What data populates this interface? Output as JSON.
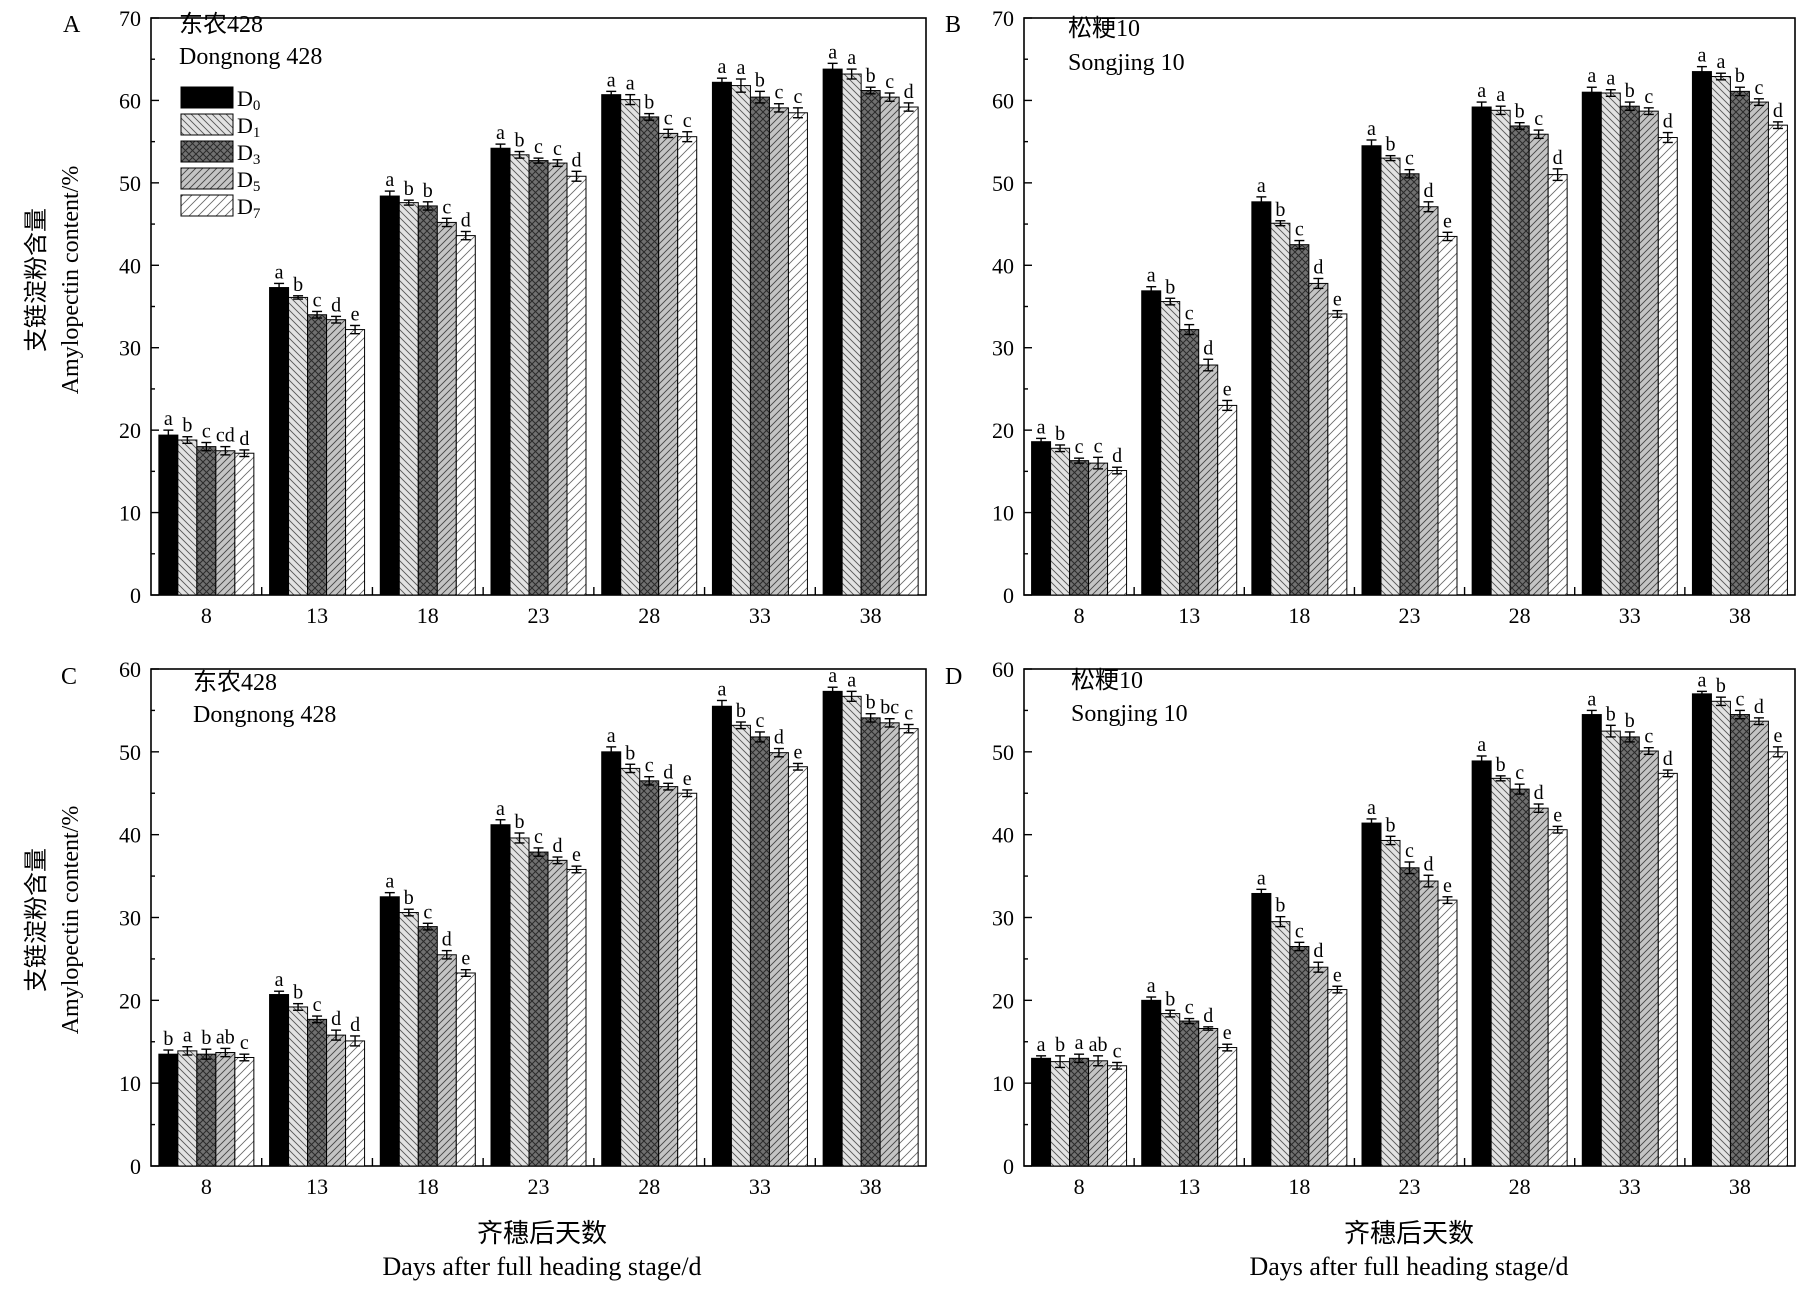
{
  "legend": {
    "items": [
      {
        "main": "D",
        "sub": "0",
        "pattern": "solid-black"
      },
      {
        "main": "D",
        "sub": "1",
        "pattern": "diag-down-light"
      },
      {
        "main": "D",
        "sub": "3",
        "pattern": "crosshatch-dark"
      },
      {
        "main": "D",
        "sub": "5",
        "pattern": "diag-up-gray"
      },
      {
        "main": "D",
        "sub": "7",
        "pattern": "diag-up-white"
      }
    ]
  },
  "shared": {
    "ylabel_cn": "支链淀粉含量",
    "ylabel_en": "Amylopectin content/%",
    "xlabel_cn": "齐穗后天数",
    "xlabel_en": "Days after full heading stage/d"
  },
  "chart_data": [
    {
      "type": "bar",
      "panel": "A",
      "title_cn": "东农428",
      "title_en": "Dongnong 428",
      "categories": [
        "8",
        "13",
        "18",
        "23",
        "28",
        "33",
        "38"
      ],
      "ylim": [
        0,
        70
      ],
      "yticks": [
        0,
        10,
        20,
        30,
        40,
        50,
        60,
        70
      ],
      "series": [
        {
          "name": "D0",
          "values": [
            19.4,
            37.3,
            48.4,
            54.2,
            60.7,
            62.2,
            63.8
          ],
          "errors": [
            0.6,
            0.5,
            0.6,
            0.5,
            0.4,
            0.5,
            0.7
          ]
        },
        {
          "name": "D1",
          "values": [
            18.8,
            36.1,
            47.6,
            53.4,
            60.1,
            61.8,
            63.2
          ],
          "errors": [
            0.4,
            0.2,
            0.3,
            0.4,
            0.6,
            0.8,
            0.6
          ]
        },
        {
          "name": "D3",
          "values": [
            18.0,
            34.0,
            47.2,
            52.7,
            58.0,
            60.4,
            61.2
          ],
          "errors": [
            0.5,
            0.4,
            0.5,
            0.3,
            0.4,
            0.7,
            0.4
          ]
        },
        {
          "name": "D5",
          "values": [
            17.5,
            33.4,
            45.2,
            52.4,
            56.0,
            59.1,
            60.4
          ],
          "errors": [
            0.5,
            0.4,
            0.5,
            0.4,
            0.5,
            0.5,
            0.5
          ]
        },
        {
          "name": "D7",
          "values": [
            17.2,
            32.2,
            43.6,
            50.8,
            55.6,
            58.5,
            59.2
          ],
          "errors": [
            0.4,
            0.5,
            0.5,
            0.6,
            0.6,
            0.6,
            0.5
          ]
        }
      ],
      "letters": [
        [
          "a",
          "b",
          "c",
          "cd",
          "d"
        ],
        [
          "a",
          "b",
          "c",
          "d",
          "e"
        ],
        [
          "a",
          "b",
          "b",
          "c",
          "d"
        ],
        [
          "a",
          "b",
          "c",
          "c",
          "d"
        ],
        [
          "a",
          "a",
          "b",
          "c",
          "c"
        ],
        [
          "a",
          "a",
          "b",
          "c",
          "c"
        ],
        [
          "a",
          "a",
          "b",
          "c",
          "d"
        ]
      ]
    },
    {
      "type": "bar",
      "panel": "B",
      "title_cn": "松粳10",
      "title_en": "Songjing 10",
      "categories": [
        "8",
        "13",
        "18",
        "23",
        "28",
        "33",
        "38"
      ],
      "ylim": [
        0,
        70
      ],
      "yticks": [
        0,
        10,
        20,
        30,
        40,
        50,
        60,
        70
      ],
      "series": [
        {
          "name": "D0",
          "values": [
            18.6,
            36.9,
            47.7,
            54.5,
            59.2,
            61.0,
            63.5
          ],
          "errors": [
            0.4,
            0.5,
            0.6,
            0.7,
            0.6,
            0.6,
            0.6
          ]
        },
        {
          "name": "D1",
          "values": [
            17.8,
            35.6,
            45.1,
            53.0,
            58.8,
            60.9,
            62.9
          ],
          "errors": [
            0.4,
            0.4,
            0.3,
            0.3,
            0.5,
            0.4,
            0.4
          ]
        },
        {
          "name": "D3",
          "values": [
            16.3,
            32.2,
            42.5,
            51.1,
            56.9,
            59.3,
            61.1
          ],
          "errors": [
            0.3,
            0.6,
            0.5,
            0.5,
            0.4,
            0.5,
            0.5
          ]
        },
        {
          "name": "D5",
          "values": [
            16.0,
            27.9,
            37.8,
            47.1,
            55.9,
            58.7,
            59.8
          ],
          "errors": [
            0.7,
            0.7,
            0.6,
            0.6,
            0.5,
            0.4,
            0.4
          ]
        },
        {
          "name": "D7",
          "values": [
            15.1,
            23.0,
            34.1,
            43.5,
            51.0,
            55.5,
            57.0
          ],
          "errors": [
            0.4,
            0.6,
            0.4,
            0.5,
            0.7,
            0.6,
            0.4
          ]
        }
      ],
      "letters": [
        [
          "a",
          "b",
          "c",
          "c",
          "d"
        ],
        [
          "a",
          "b",
          "c",
          "d",
          "e"
        ],
        [
          "a",
          "b",
          "c",
          "d",
          "e"
        ],
        [
          "a",
          "b",
          "c",
          "d",
          "e"
        ],
        [
          "a",
          "a",
          "b",
          "c",
          "d"
        ],
        [
          "a",
          "a",
          "b",
          "c",
          "d"
        ],
        [
          "a",
          "a",
          "b",
          "c",
          "d"
        ]
      ]
    },
    {
      "type": "bar",
      "panel": "C",
      "title_cn": "东农428",
      "title_en": "Dongnong 428",
      "categories": [
        "8",
        "13",
        "18",
        "23",
        "28",
        "33",
        "38"
      ],
      "ylim": [
        0,
        60
      ],
      "yticks": [
        0,
        10,
        20,
        30,
        40,
        50,
        60
      ],
      "series": [
        {
          "name": "D0",
          "values": [
            13.5,
            20.7,
            32.5,
            41.2,
            50.0,
            55.5,
            57.3
          ],
          "errors": [
            0.5,
            0.4,
            0.5,
            0.6,
            0.6,
            0.7,
            0.5
          ]
        },
        {
          "name": "D1",
          "values": [
            13.9,
            19.2,
            30.6,
            39.6,
            48.0,
            53.2,
            56.7
          ],
          "errors": [
            0.5,
            0.4,
            0.4,
            0.6,
            0.5,
            0.4,
            0.6
          ]
        },
        {
          "name": "D3",
          "values": [
            13.5,
            17.7,
            28.9,
            37.9,
            46.5,
            51.8,
            54.1
          ],
          "errors": [
            0.6,
            0.4,
            0.4,
            0.5,
            0.5,
            0.6,
            0.5
          ]
        },
        {
          "name": "D5",
          "values": [
            13.7,
            15.8,
            25.5,
            36.9,
            45.8,
            49.9,
            53.5
          ],
          "errors": [
            0.5,
            0.6,
            0.5,
            0.4,
            0.4,
            0.5,
            0.5
          ]
        },
        {
          "name": "D7",
          "values": [
            13.1,
            15.1,
            23.3,
            35.8,
            45.0,
            48.2,
            52.8
          ],
          "errors": [
            0.4,
            0.6,
            0.4,
            0.4,
            0.4,
            0.4,
            0.5
          ]
        }
      ],
      "letters": [
        [
          "b",
          "a",
          "b",
          "ab",
          "c"
        ],
        [
          "a",
          "b",
          "c",
          "d",
          "d"
        ],
        [
          "a",
          "b",
          "c",
          "d",
          "e"
        ],
        [
          "a",
          "b",
          "c",
          "d",
          "e"
        ],
        [
          "a",
          "b",
          "c",
          "d",
          "e"
        ],
        [
          "a",
          "b",
          "c",
          "d",
          "e"
        ],
        [
          "a",
          "a",
          "b",
          "bc",
          "c"
        ]
      ]
    },
    {
      "type": "bar",
      "panel": "D",
      "title_cn": "松粳10",
      "title_en": "Songjing 10",
      "categories": [
        "8",
        "13",
        "18",
        "23",
        "28",
        "33",
        "38"
      ],
      "ylim": [
        0,
        60
      ],
      "yticks": [
        0,
        10,
        20,
        30,
        40,
        50,
        60
      ],
      "series": [
        {
          "name": "D0",
          "values": [
            13.0,
            20.0,
            32.9,
            41.4,
            48.9,
            54.5,
            57.0
          ],
          "errors": [
            0.3,
            0.4,
            0.5,
            0.5,
            0.6,
            0.5,
            0.3
          ]
        },
        {
          "name": "D1",
          "values": [
            12.6,
            18.4,
            29.5,
            39.3,
            46.8,
            52.5,
            56.1
          ],
          "errors": [
            0.7,
            0.4,
            0.6,
            0.5,
            0.3,
            0.7,
            0.5
          ]
        },
        {
          "name": "D3",
          "values": [
            13.0,
            17.5,
            26.5,
            36.0,
            45.5,
            51.8,
            54.5
          ],
          "errors": [
            0.5,
            0.3,
            0.5,
            0.7,
            0.6,
            0.6,
            0.5
          ]
        },
        {
          "name": "D5",
          "values": [
            12.7,
            16.6,
            24.0,
            34.4,
            43.2,
            50.1,
            53.7
          ],
          "errors": [
            0.6,
            0.2,
            0.6,
            0.7,
            0.5,
            0.4,
            0.4
          ]
        },
        {
          "name": "D7",
          "values": [
            12.1,
            14.3,
            21.3,
            32.1,
            40.6,
            47.4,
            50.0
          ],
          "errors": [
            0.4,
            0.4,
            0.4,
            0.4,
            0.4,
            0.4,
            0.6
          ]
        }
      ],
      "letters": [
        [
          "a",
          "b",
          "a",
          "ab",
          "c"
        ],
        [
          "a",
          "b",
          "c",
          "d",
          "e"
        ],
        [
          "a",
          "b",
          "c",
          "d",
          "e"
        ],
        [
          "a",
          "b",
          "c",
          "d",
          "e"
        ],
        [
          "a",
          "b",
          "c",
          "d",
          "e"
        ],
        [
          "a",
          "b",
          "b",
          "c",
          "d"
        ],
        [
          "a",
          "b",
          "c",
          "d",
          "e"
        ]
      ]
    }
  ]
}
